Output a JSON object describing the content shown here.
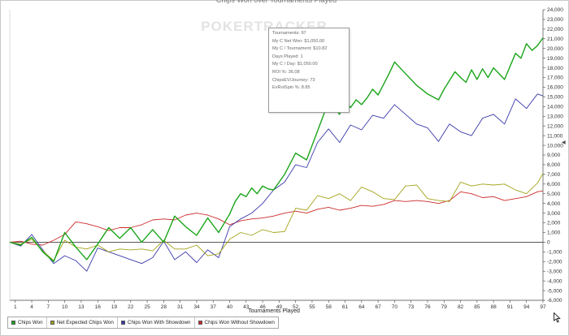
{
  "window_title": "Chips Won over Tournaments Played",
  "watermark": "POKERTRACKER",
  "tooltip": [
    "Tournaments: 97",
    "My C Net Won: $1,050.00",
    "My C / Tournament: $10.82",
    "Days Played: 1",
    "My C / Day: $1,050.00",
    "ROI %: 36.08",
    "ChipsEV/Journey: 73",
    "EvRoiSpin %: 8.85"
  ],
  "legend": {
    "items": [
      {
        "label": "Chips Won",
        "color": "#1aa51a"
      },
      {
        "label": "Net Expected Chips Won",
        "color": "#a3a31a"
      },
      {
        "label": "Chips Won With Showdown",
        "color": "#3a3aaa"
      },
      {
        "label": "Chips Won Without Showdown",
        "color": "#cc2a2a"
      }
    ]
  },
  "chart_data": {
    "type": "line",
    "title": "Chips Won over Tournaments Played",
    "xlabel": "Tournaments Played",
    "ylabel": "",
    "xlim": [
      0,
      97
    ],
    "ylim": [
      -6000,
      24000
    ],
    "x_ticks": [
      1,
      4,
      7,
      10,
      13,
      16,
      19,
      22,
      25,
      28,
      31,
      34,
      37,
      40,
      43,
      46,
      49,
      52,
      55,
      58,
      61,
      64,
      67,
      70,
      73,
      76,
      79,
      82,
      85,
      88,
      91,
      94,
      97
    ],
    "y_ticks": [
      "-6,000",
      "-5,000",
      "-4,000",
      "-3,000",
      "-2,000",
      "-1,000",
      "0",
      "1,000",
      "2,000",
      "3,000",
      "4,000",
      "5,000",
      "6,000",
      "7,000",
      "8,000",
      "9,000",
      "10,000",
      "11,000",
      "12,000",
      "13,000",
      "14,000",
      "15,000",
      "16,000",
      "17,000",
      "18,000",
      "19,000",
      "20,000",
      "21,000",
      "22,000",
      "23,000",
      "24,000"
    ],
    "y_tick_values": [
      -6000,
      -5000,
      -4000,
      -3000,
      -2000,
      -1000,
      0,
      1000,
      2000,
      3000,
      4000,
      5000,
      6000,
      7000,
      8000,
      9000,
      10000,
      11000,
      12000,
      13000,
      14000,
      15000,
      16000,
      17000,
      18000,
      19000,
      20000,
      21000,
      22000,
      23000,
      24000
    ],
    "grid": false,
    "legend_position": "bottom-left",
    "series": [
      {
        "name": "Chips Won",
        "color": "#1aa51a",
        "x": [
          0,
          2,
          4,
          6,
          8,
          10,
          12,
          14,
          16,
          18,
          20,
          22,
          24,
          26,
          28,
          30,
          32,
          34,
          36,
          38,
          40,
          41,
          42,
          43,
          44,
          45,
          46,
          47,
          48,
          50,
          52,
          54,
          56,
          58,
          60,
          61,
          62,
          63,
          64,
          65,
          66,
          67,
          68,
          69,
          70,
          72,
          74,
          76,
          78,
          79,
          81,
          82,
          83,
          84,
          85,
          86,
          87,
          88,
          90,
          92,
          93,
          94,
          95,
          96,
          97
        ],
        "y": [
          0,
          -300,
          500,
          -1000,
          -2000,
          1000,
          -500,
          -1800,
          -200,
          1500,
          400,
          1500,
          0,
          1300,
          0,
          2700,
          1600,
          700,
          2500,
          1000,
          2900,
          4200,
          5000,
          4700,
          5600,
          5000,
          5800,
          5500,
          5400,
          7000,
          9200,
          8500,
          11500,
          14500,
          13200,
          14600,
          13900,
          14700,
          14200,
          14900,
          15800,
          15200,
          16300,
          17400,
          18600,
          17400,
          16200,
          15300,
          14700,
          15800,
          17600,
          17000,
          16500,
          17800,
          16800,
          17900,
          17000,
          18000,
          16800,
          19500,
          19000,
          20500,
          19800,
          20300,
          21100
        ]
      },
      {
        "name": "Net Expected Chips Won",
        "color": "#a3a31a",
        "x": [
          0,
          2,
          4,
          6,
          8,
          10,
          12,
          14,
          16,
          18,
          20,
          22,
          24,
          26,
          28,
          30,
          32,
          34,
          36,
          38,
          40,
          42,
          44,
          46,
          48,
          50,
          52,
          54,
          56,
          58,
          60,
          62,
          64,
          66,
          68,
          70,
          72,
          74,
          76,
          78,
          80,
          82,
          84,
          86,
          88,
          90,
          92,
          94,
          96,
          97
        ],
        "y": [
          0,
          -200,
          300,
          -900,
          -1900,
          200,
          -500,
          -700,
          -300,
          -1000,
          -700,
          -800,
          -700,
          -900,
          200,
          -700,
          -700,
          -300,
          -1400,
          -1200,
          300,
          1000,
          700,
          1300,
          1000,
          1100,
          3500,
          3300,
          4800,
          4500,
          5000,
          4300,
          5700,
          5200,
          4500,
          4400,
          5800,
          5900,
          4500,
          4300,
          4200,
          6200,
          5800,
          6000,
          5900,
          6000,
          5400,
          5000,
          6100,
          7100
        ]
      },
      {
        "name": "Chips Won With Showdown",
        "color": "#3a3aaa",
        "x": [
          0,
          2,
          4,
          6,
          8,
          10,
          12,
          14,
          16,
          18,
          20,
          22,
          24,
          26,
          28,
          30,
          32,
          34,
          36,
          38,
          40,
          42,
          44,
          46,
          48,
          50,
          52,
          54,
          56,
          58,
          60,
          62,
          64,
          66,
          68,
          70,
          72,
          74,
          76,
          78,
          80,
          82,
          84,
          86,
          88,
          90,
          92,
          94,
          96,
          97
        ],
        "y": [
          0,
          -400,
          800,
          -800,
          -2200,
          -1400,
          -1900,
          -3000,
          -600,
          -1000,
          -1400,
          -1800,
          -2200,
          -1600,
          100,
          -1800,
          -1000,
          -2100,
          -800,
          -1600,
          1600,
          2400,
          3000,
          4000,
          5400,
          6200,
          8000,
          7700,
          10300,
          11700,
          10300,
          12100,
          11600,
          13100,
          12800,
          14200,
          13200,
          12200,
          11800,
          10400,
          12200,
          11400,
          11000,
          12800,
          13200,
          12200,
          14800,
          13800,
          15300,
          15100
        ]
      },
      {
        "name": "Chips Won Without Showdown",
        "color": "#cc2a2a",
        "x": [
          0,
          2,
          4,
          6,
          8,
          10,
          12,
          14,
          16,
          18,
          20,
          22,
          24,
          26,
          28,
          30,
          32,
          34,
          36,
          38,
          40,
          42,
          44,
          46,
          48,
          50,
          52,
          54,
          56,
          58,
          60,
          62,
          64,
          66,
          68,
          70,
          72,
          74,
          76,
          78,
          80,
          82,
          84,
          86,
          88,
          90,
          92,
          94,
          96,
          97
        ],
        "y": [
          0,
          100,
          -200,
          -300,
          200,
          800,
          2100,
          1900,
          1600,
          1200,
          1500,
          1500,
          1800,
          2300,
          2400,
          2300,
          2800,
          3000,
          2800,
          2400,
          1800,
          2200,
          2400,
          2500,
          2700,
          3000,
          3200,
          3000,
          3400,
          3600,
          3300,
          3500,
          3800,
          3700,
          3900,
          4300,
          4200,
          4300,
          4200,
          4000,
          4300,
          5200,
          5000,
          4600,
          4700,
          4300,
          4500,
          4700,
          5200,
          5300
        ]
      }
    ]
  }
}
